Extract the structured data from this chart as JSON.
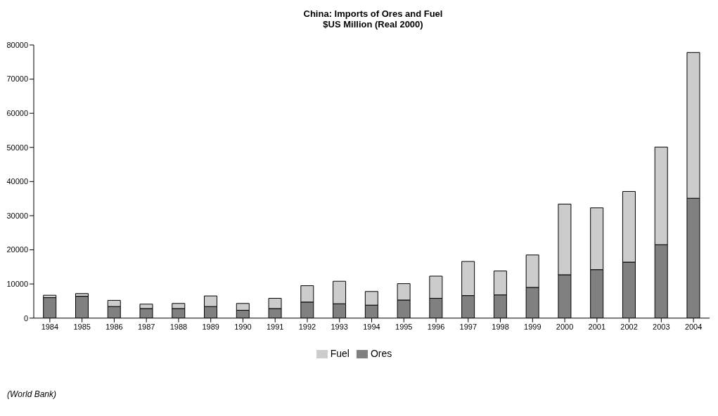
{
  "chart_data": {
    "type": "bar",
    "title": "China: Imports of Ores and Fuel",
    "subtitle": "$US Million (Real 2000)",
    "categories": [
      "1984",
      "1985",
      "1986",
      "1987",
      "1988",
      "1989",
      "1990",
      "1991",
      "1992",
      "1993",
      "1994",
      "1995",
      "1996",
      "1997",
      "1998",
      "1999",
      "2000",
      "2001",
      "2002",
      "2003",
      "2004"
    ],
    "series": [
      {
        "name": "Ores",
        "color": "#808080",
        "values": [
          6000,
          6400,
          3400,
          2800,
          2800,
          3400,
          2300,
          2800,
          4700,
          4200,
          3800,
          5300,
          5800,
          6600,
          6800,
          9000,
          12700,
          14200,
          16400,
          21500,
          35100
        ]
      },
      {
        "name": "Fuel",
        "color": "#cccccc",
        "values": [
          700,
          800,
          1800,
          1300,
          1500,
          3100,
          2000,
          3000,
          4800,
          6600,
          4000,
          4800,
          6500,
          10000,
          7000,
          9500,
          20700,
          18100,
          20700,
          28600,
          42700
        ]
      }
    ],
    "stacked": true,
    "ylim": [
      0,
      80000
    ],
    "yticks": [
      0,
      10000,
      20000,
      30000,
      40000,
      50000,
      60000,
      70000,
      80000
    ],
    "grid": false,
    "legend": "bottom",
    "annotations": [
      "(World Bank)"
    ]
  }
}
